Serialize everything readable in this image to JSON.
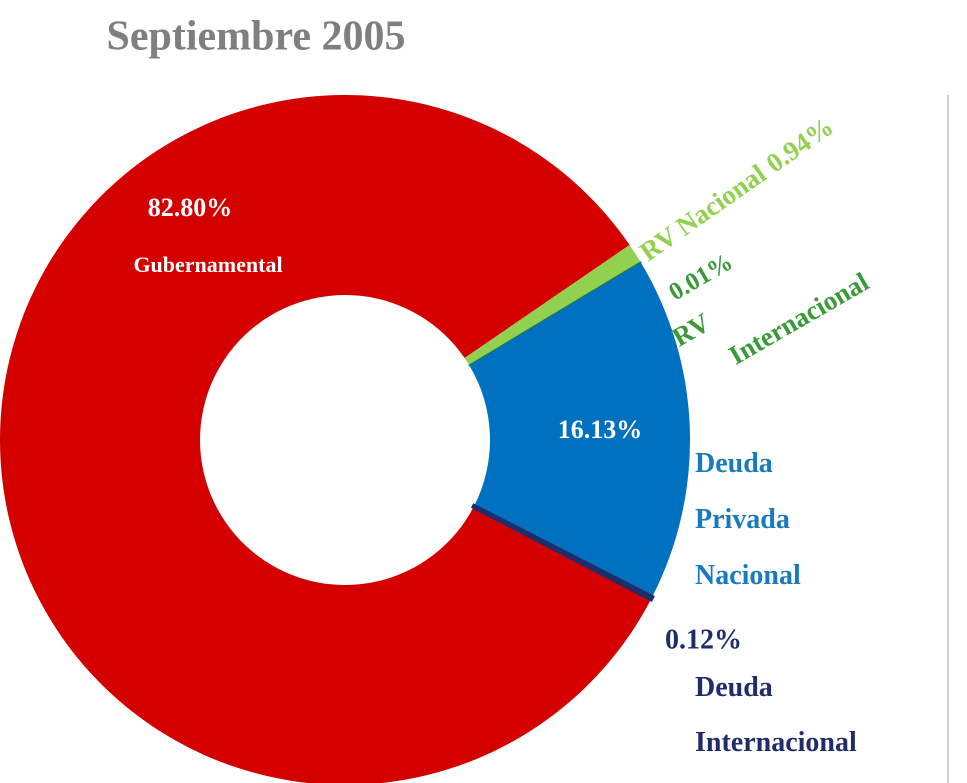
{
  "chart_data": {
    "type": "donut",
    "title": "Septiembre 2005",
    "categories": [
      "Gubernamental",
      "RV Nacional",
      "RV Internacional",
      "Deuda Privada Nacional",
      "Deuda Internacional"
    ],
    "values": [
      82.8,
      0.94,
      0.01,
      16.13,
      0.12
    ],
    "value_labels": [
      "82.80%",
      "0.94%",
      "0.01%",
      "16.13%",
      "0.12%"
    ],
    "colors": [
      "#d40000",
      "#92d050",
      "#2e7d32",
      "#0070c0",
      "#1f2d6b"
    ]
  }
}
